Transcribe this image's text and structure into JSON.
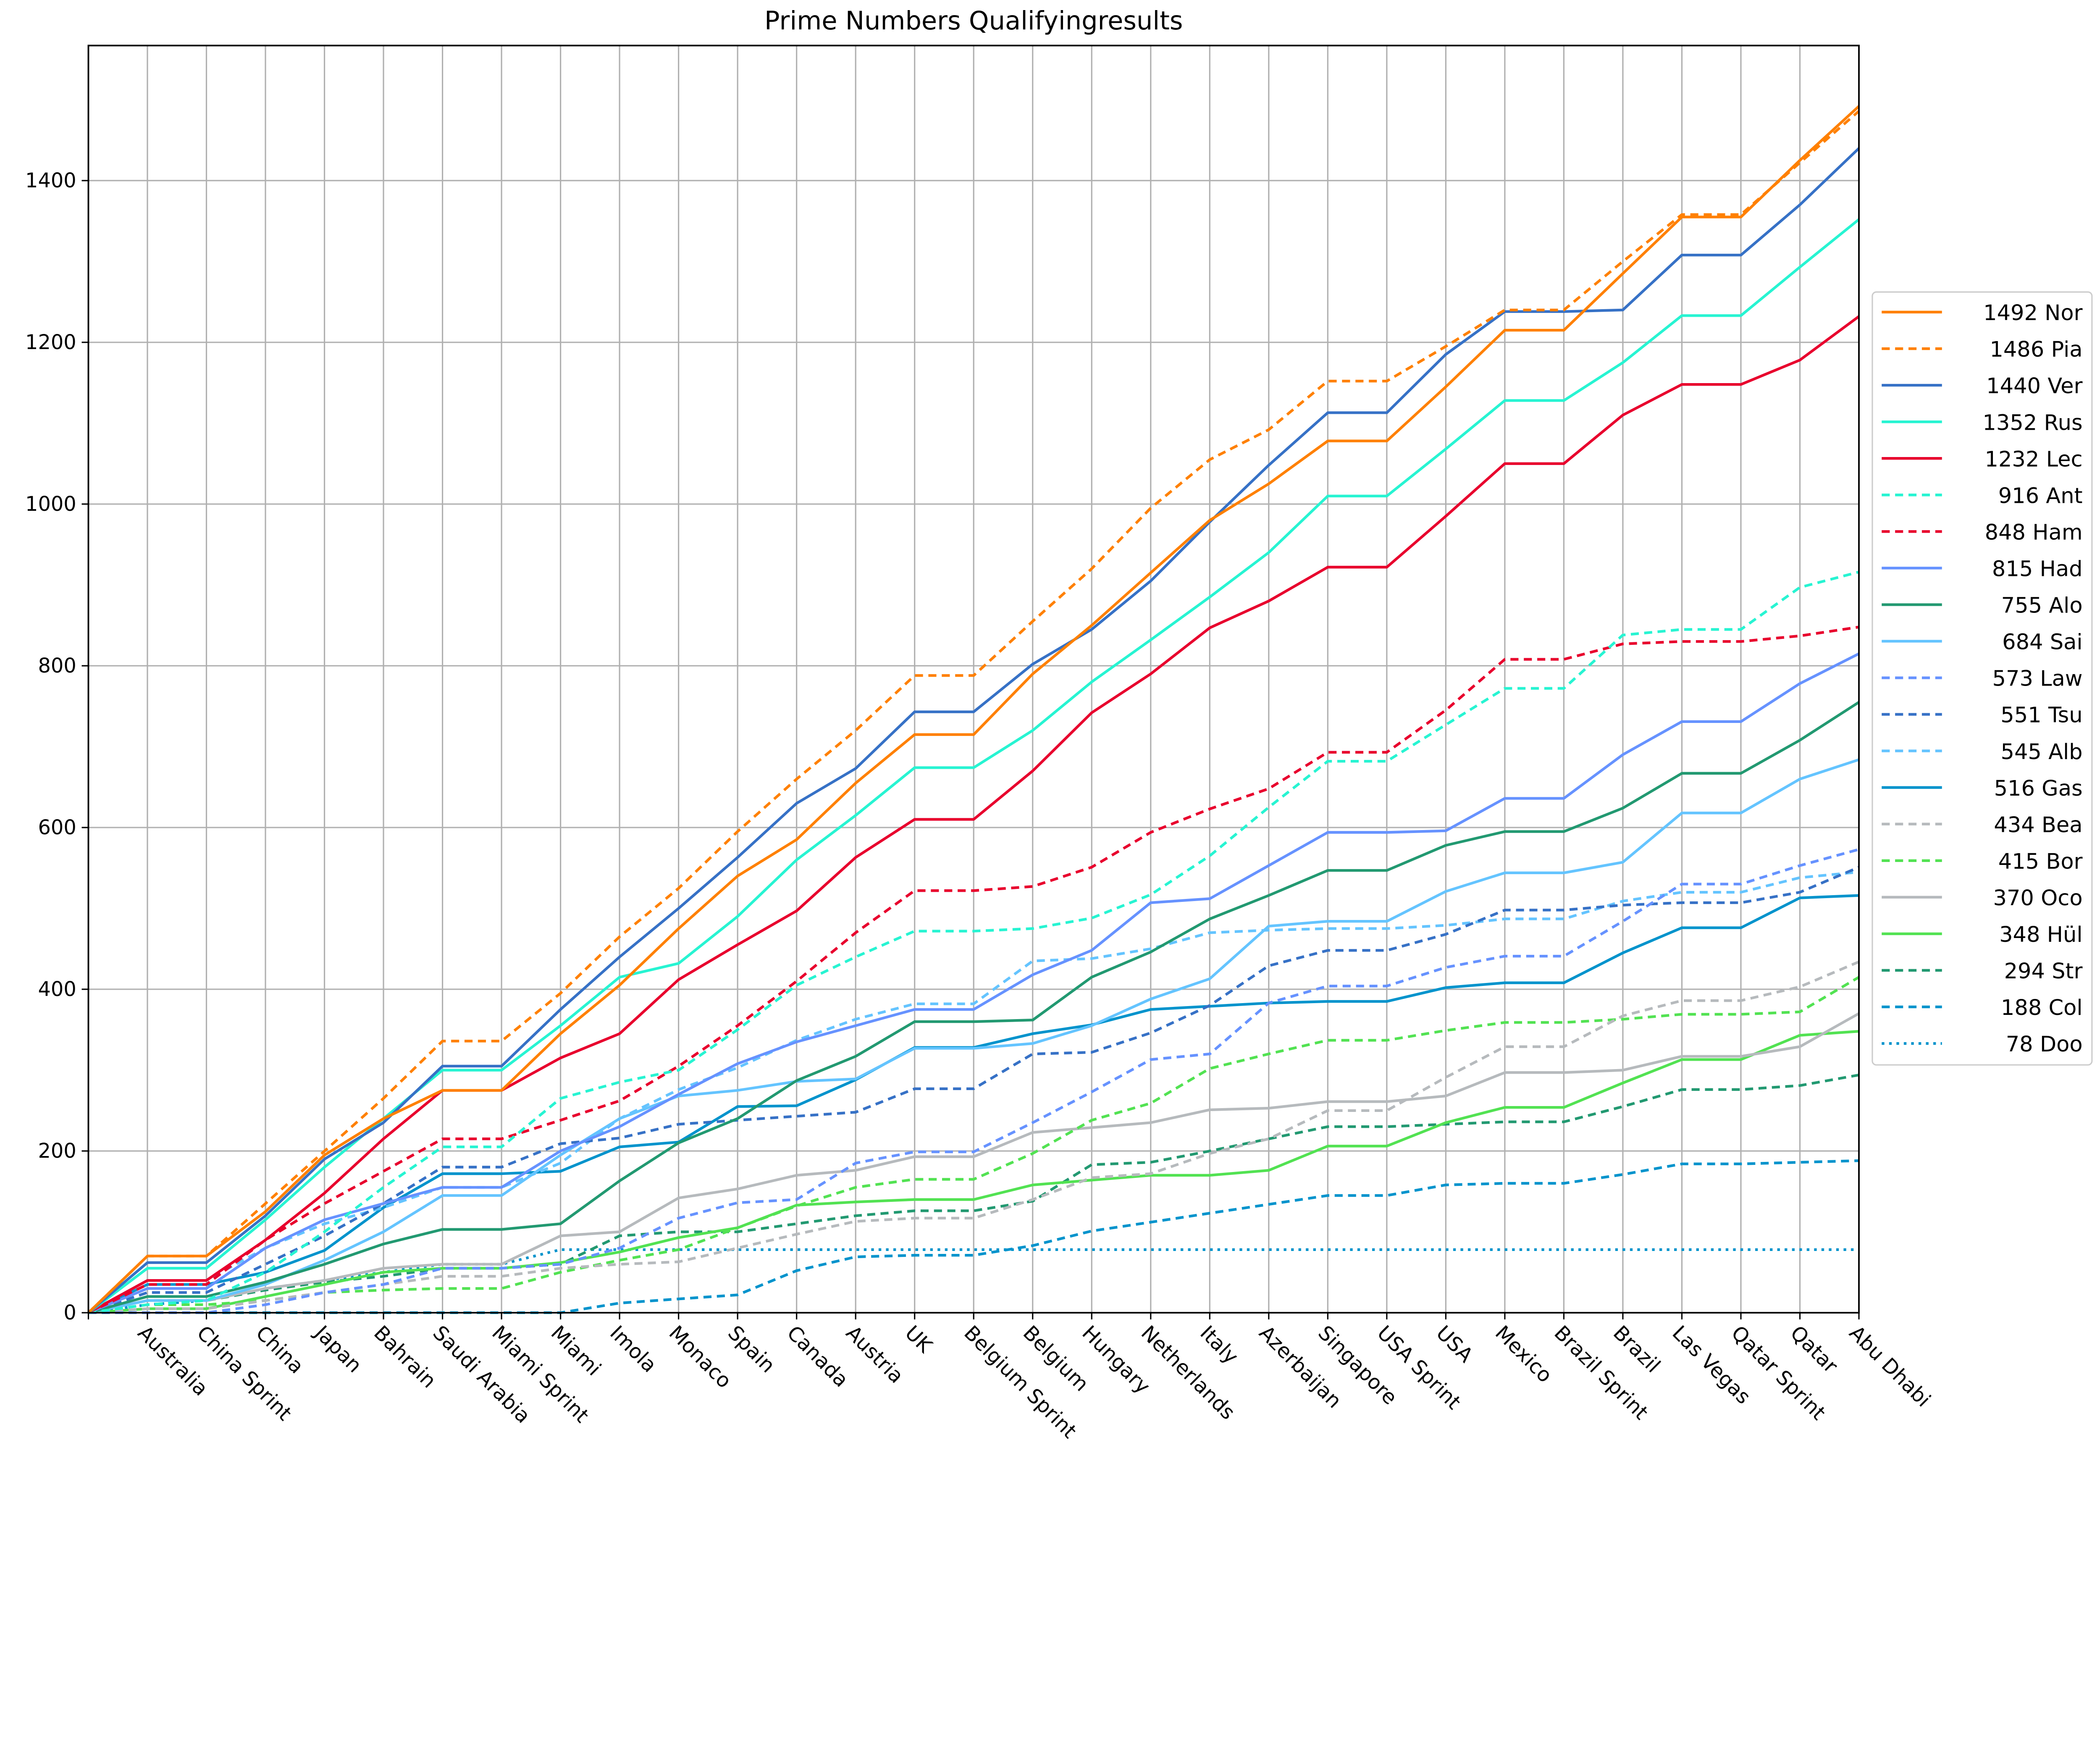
{
  "chart_data": {
    "type": "line",
    "title": "Prime Numbers Qualifyingresults",
    "xlabel": "",
    "ylabel": "",
    "ylim": [
      0,
      1567
    ],
    "yticks": [
      0,
      200,
      400,
      600,
      800,
      1000,
      1200,
      1400
    ],
    "grid": true,
    "legend_position": "right",
    "categories": [
      "",
      "Australia",
      "China Sprint",
      "China",
      "Japan",
      "Bahrain",
      "Saudi Arabia",
      "Miami Sprint",
      "Miami",
      "Imola",
      "Monaco",
      "Spain",
      "Canada",
      "Austria",
      "UK",
      "Belgium Sprint",
      "Belgium",
      "Hungary",
      "Netherlands",
      "Italy",
      "Azerbaijan",
      "Singapore",
      "USA Sprint",
      "USA",
      "Mexico",
      "Brazil Sprint",
      "Brazil",
      "Las Vegas",
      "Qatar Sprint",
      "Qatar",
      "Abu Dhabi"
    ],
    "series": [
      {
        "name": "1492 Nor",
        "color": "#ff8000",
        "style": "solid",
        "values": [
          0,
          70,
          70,
          125,
          195,
          240,
          275,
          275,
          345,
          405,
          475,
          540,
          585,
          655,
          715,
          715,
          790,
          850,
          915,
          980,
          1025,
          1078,
          1078,
          1145,
          1215,
          1215,
          1285,
          1355,
          1355,
          1425,
          1492
        ]
      },
      {
        "name": "1486 Pia",
        "color": "#ff8000",
        "style": "dashed",
        "values": [
          0,
          70,
          70,
          135,
          200,
          265,
          336,
          336,
          395,
          465,
          525,
          595,
          660,
          720,
          788,
          788,
          855,
          920,
          995,
          1055,
          1092,
          1152,
          1152,
          1195,
          1240,
          1240,
          1300,
          1358,
          1358,
          1422,
          1486
        ]
      },
      {
        "name": "1440 Ver",
        "color": "#3671c6",
        "style": "solid",
        "values": [
          0,
          62,
          62,
          120,
          190,
          235,
          305,
          305,
          375,
          440,
          500,
          563,
          630,
          673,
          743,
          743,
          802,
          845,
          905,
          978,
          1048,
          1113,
          1113,
          1185,
          1238,
          1238,
          1240,
          1308,
          1308,
          1370,
          1440
        ]
      },
      {
        "name": "1352 Rus",
        "color": "#27f4d2",
        "style": "solid",
        "values": [
          0,
          55,
          55,
          115,
          180,
          240,
          300,
          300,
          355,
          415,
          432,
          490,
          560,
          615,
          674,
          674,
          720,
          780,
          832,
          885,
          940,
          1010,
          1010,
          1068,
          1128,
          1128,
          1175,
          1233,
          1233,
          1293,
          1352
        ]
      },
      {
        "name": "1232 Lec",
        "color": "#e8002d",
        "style": "solid",
        "values": [
          0,
          40,
          40,
          90,
          148,
          215,
          275,
          275,
          315,
          345,
          412,
          455,
          497,
          563,
          610,
          610,
          670,
          742,
          790,
          847,
          880,
          922,
          922,
          985,
          1050,
          1050,
          1110,
          1148,
          1148,
          1178,
          1232
        ]
      },
      {
        "name": "916 Ant",
        "color": "#27f4d2",
        "style": "dashed",
        "values": [
          0,
          10,
          15,
          50,
          100,
          155,
          205,
          205,
          265,
          285,
          300,
          350,
          405,
          440,
          472,
          472,
          475,
          488,
          517,
          565,
          625,
          682,
          682,
          727,
          772,
          772,
          838,
          845,
          845,
          897,
          916
        ]
      },
      {
        "name": "848 Ham",
        "color": "#e8002d",
        "style": "dashed",
        "values": [
          0,
          35,
          35,
          90,
          135,
          175,
          215,
          215,
          238,
          262,
          305,
          355,
          410,
          470,
          522,
          522,
          527,
          551,
          594,
          623,
          648,
          693,
          693,
          745,
          808,
          808,
          827,
          830,
          830,
          837,
          848
        ]
      },
      {
        "name": "815 Had",
        "color": "#6692ff",
        "style": "solid",
        "values": [
          0,
          30,
          30,
          80,
          115,
          135,
          155,
          155,
          200,
          230,
          270,
          308,
          335,
          355,
          375,
          375,
          418,
          448,
          507,
          512,
          553,
          594,
          594,
          596,
          636,
          636,
          690,
          731,
          731,
          778,
          815
        ]
      },
      {
        "name": "755 Alo",
        "color": "#229971",
        "style": "solid",
        "values": [
          0,
          20,
          20,
          38,
          60,
          85,
          103,
          103,
          110,
          163,
          210,
          240,
          287,
          317,
          360,
          360,
          362,
          415,
          446,
          487,
          516,
          547,
          547,
          578,
          595,
          595,
          624,
          667,
          667,
          708,
          755
        ]
      },
      {
        "name": "684 Sai",
        "color": "#64c4ff",
        "style": "solid",
        "values": [
          0,
          15,
          15,
          35,
          65,
          100,
          145,
          145,
          195,
          240,
          268,
          275,
          286,
          289,
          327,
          327,
          333,
          355,
          388,
          413,
          478,
          484,
          484,
          521,
          544,
          544,
          557,
          618,
          618,
          660,
          684
        ]
      },
      {
        "name": "573 Law",
        "color": "#6692ff",
        "style": "dashed",
        "values": [
          0,
          0,
          0,
          10,
          25,
          35,
          55,
          55,
          60,
          80,
          117,
          136,
          140,
          185,
          199,
          199,
          235,
          273,
          313,
          320,
          383,
          404,
          404,
          427,
          441,
          441,
          484,
          530,
          530,
          553,
          573
        ]
      },
      {
        "name": "551 Tsu",
        "color": "#3671c6",
        "style": "dashed",
        "values": [
          0,
          25,
          25,
          60,
          95,
          135,
          180,
          180,
          209,
          216,
          233,
          238,
          243,
          248,
          277,
          277,
          320,
          322,
          346,
          380,
          429,
          448,
          448,
          468,
          498,
          498,
          504,
          507,
          507,
          520,
          551
        ]
      },
      {
        "name": "545 Alb",
        "color": "#64c4ff",
        "style": "dashed",
        "values": [
          0,
          40,
          40,
          80,
          110,
          130,
          155,
          155,
          185,
          240,
          276,
          303,
          337,
          363,
          382,
          382,
          435,
          438,
          450,
          470,
          473,
          475,
          475,
          479,
          487,
          487,
          509,
          520,
          520,
          538,
          545
        ]
      },
      {
        "name": "516 Gas",
        "color": "#0093cc",
        "style": "solid",
        "values": [
          0,
          35,
          35,
          50,
          77,
          130,
          172,
          172,
          175,
          205,
          211,
          255,
          256,
          288,
          328,
          328,
          345,
          356,
          375,
          379,
          383,
          385,
          385,
          402,
          408,
          408,
          445,
          476,
          476,
          513,
          516
        ]
      },
      {
        "name": "434 Bea",
        "color": "#b6babd",
        "style": "dashed",
        "values": [
          0,
          5,
          5,
          15,
          25,
          35,
          45,
          45,
          55,
          60,
          63,
          80,
          97,
          113,
          117,
          117,
          140,
          167,
          172,
          197,
          215,
          250,
          250,
          291,
          329,
          329,
          367,
          386,
          386,
          403,
          434
        ]
      },
      {
        "name": "415 Bor",
        "color": "#52e252",
        "style": "dashed",
        "values": [
          0,
          10,
          10,
          15,
          25,
          28,
          30,
          30,
          50,
          65,
          78,
          105,
          132,
          155,
          165,
          165,
          197,
          238,
          259,
          302,
          320,
          337,
          337,
          349,
          359,
          359,
          363,
          369,
          369,
          372,
          415
        ]
      },
      {
        "name": "370 Oco",
        "color": "#b6babd",
        "style": "solid",
        "values": [
          0,
          15,
          15,
          30,
          40,
          55,
          60,
          60,
          95,
          100,
          142,
          153,
          170,
          176,
          193,
          193,
          223,
          229,
          235,
          251,
          253,
          261,
          261,
          268,
          297,
          297,
          300,
          317,
          317,
          329,
          370
        ]
      },
      {
        "name": "348 Hül",
        "color": "#52e252",
        "style": "solid",
        "values": [
          0,
          5,
          5,
          20,
          35,
          50,
          55,
          55,
          62,
          75,
          93,
          105,
          133,
          137,
          140,
          140,
          158,
          164,
          170,
          170,
          176,
          206,
          206,
          235,
          254,
          254,
          284,
          313,
          313,
          343,
          348
        ]
      },
      {
        "name": "294 Str",
        "color": "#229971",
        "style": "dashed",
        "values": [
          0,
          15,
          15,
          28,
          38,
          45,
          55,
          55,
          60,
          95,
          100,
          100,
          110,
          120,
          126,
          126,
          138,
          183,
          186,
          200,
          215,
          230,
          230,
          233,
          236,
          236,
          255,
          276,
          276,
          281,
          294
        ]
      },
      {
        "name": "188 Col",
        "color": "#0093cc",
        "style": "dashed",
        "values": [
          0,
          0,
          0,
          0,
          0,
          0,
          0,
          0,
          0,
          12,
          17,
          22,
          52,
          69,
          71,
          71,
          83,
          101,
          112,
          123,
          134,
          145,
          145,
          158,
          160,
          160,
          171,
          184,
          184,
          186,
          188
        ]
      },
      {
        "name": "78 Doo",
        "color": "#0093cc",
        "style": "dotted",
        "values": [
          0,
          10,
          15,
          30,
          40,
          50,
          60,
          60,
          78,
          78,
          78,
          78,
          78,
          78,
          78,
          78,
          78,
          78,
          78,
          78,
          78,
          78,
          78,
          78,
          78,
          78,
          78,
          78,
          78,
          78,
          78
        ]
      }
    ]
  }
}
